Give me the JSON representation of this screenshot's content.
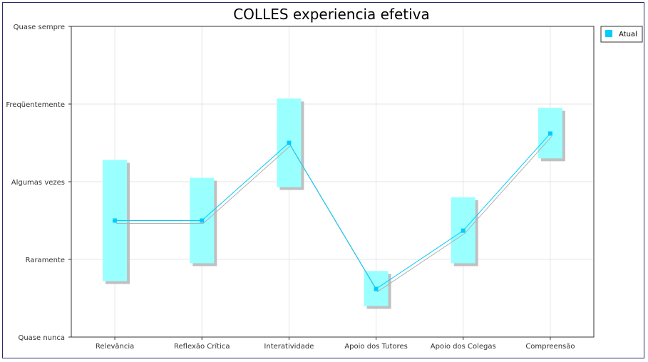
{
  "chart_data": {
    "type": "line",
    "title": "COLLES experiencia efetiva",
    "categories": [
      "Relevância",
      "Reflexão Crítica",
      "Interatividade",
      "Apoio dos Tutores",
      "Apoio dos Colegas",
      "Compreensão"
    ],
    "y_tick_labels": [
      "Quase nunca",
      "Raramente",
      "Algumas vezes",
      "Freqüentemente",
      "Quase sempre"
    ],
    "ylim": [
      1,
      5
    ],
    "grid": true,
    "legend_position": "top-right",
    "series": [
      {
        "name": "Atual",
        "color": "#00ccff",
        "values": [
          2.5,
          2.5,
          3.5,
          1.62,
          2.37,
          3.62
        ],
        "range_low": [
          1.72,
          1.95,
          2.93,
          1.4,
          1.95,
          3.3
        ],
        "range_high": [
          3.28,
          3.05,
          4.07,
          1.85,
          2.8,
          3.95
        ]
      }
    ],
    "colors": {
      "box_fill": "#99ffff",
      "box_shadow": "#c0c0c0",
      "grid": "#e6e6e6",
      "frame": "#2b2b66"
    }
  }
}
